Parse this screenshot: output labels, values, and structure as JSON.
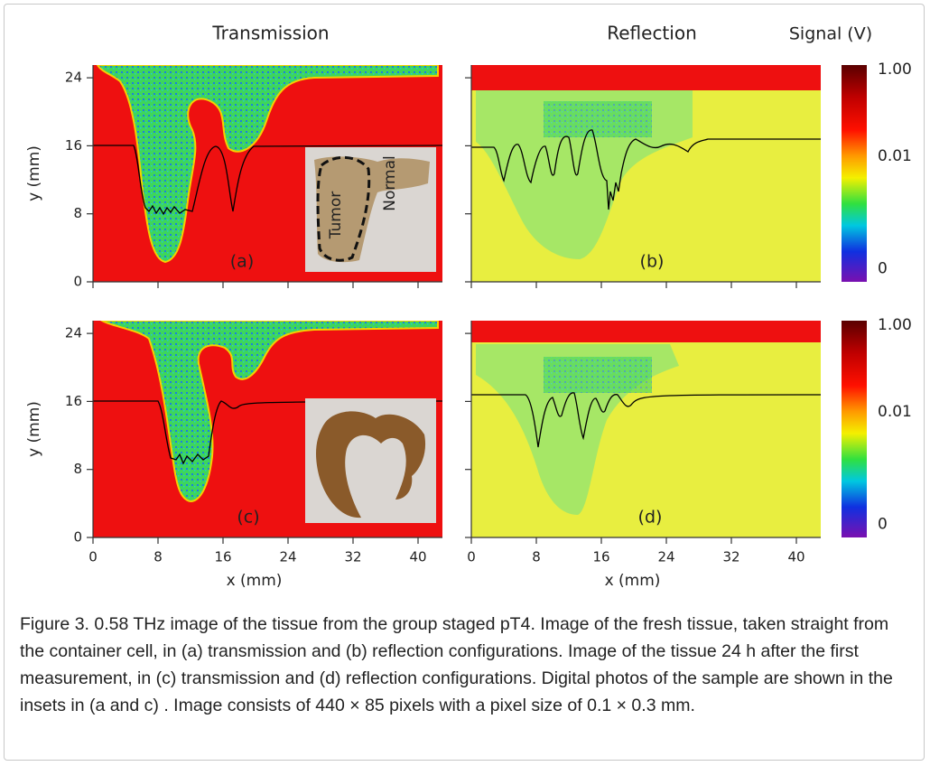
{
  "chart_data": [
    {
      "type": "heatmap",
      "mode": "transmission",
      "title": "Transmission",
      "panel_label": "(a)",
      "ylabel": "y (mm)",
      "xlim": [
        0,
        43
      ],
      "ylim": [
        0,
        25.5
      ],
      "xticks": [
        0,
        8,
        16,
        24,
        32,
        40
      ],
      "yticks": [
        0,
        8,
        16,
        24
      ],
      "show_xtick_labels": false,
      "show_ytick_labels": true,
      "inset_labels": [
        "Tumor",
        "Normal"
      ]
    },
    {
      "type": "heatmap",
      "mode": "reflection",
      "title": "Reflection",
      "panel_label": "(b)",
      "xlim": [
        0,
        43
      ],
      "ylim": [
        0,
        25.5
      ],
      "xticks": [
        0,
        8,
        16,
        24,
        32,
        40
      ],
      "yticks": [
        0,
        8,
        16,
        24
      ],
      "show_xtick_labels": false,
      "show_ytick_labels": false,
      "colorbar": {
        "title": "Signal (V)",
        "ticks": [
          {
            "value": 1,
            "label": "1.00"
          },
          0.01,
          0
        ]
      }
    },
    {
      "type": "heatmap",
      "mode": "transmission",
      "panel_label": "(c)",
      "ylabel": "y (mm)",
      "xlabel": "x (mm)",
      "xlim": [
        0,
        43
      ],
      "ylim": [
        0,
        25.5
      ],
      "xticks": [
        0,
        8,
        16,
        24,
        32,
        40
      ],
      "yticks": [
        0,
        8,
        16,
        24
      ],
      "show_xtick_labels": true,
      "show_ytick_labels": true
    },
    {
      "type": "heatmap",
      "mode": "reflection",
      "panel_label": "(d)",
      "xlabel": "x (mm)",
      "xlim": [
        0,
        43
      ],
      "ylim": [
        0,
        25.5
      ],
      "xticks": [
        0,
        8,
        16,
        24,
        32,
        40
      ],
      "yticks": [
        0,
        8,
        16,
        24
      ],
      "show_xtick_labels": true,
      "show_ytick_labels": false,
      "colorbar": {
        "ticks": [
          {
            "value": 1,
            "label": "1.00"
          },
          0.01,
          0
        ]
      }
    }
  ],
  "caption": "Figure 3. 0.58 THz image of the tissue from the group staged pT4. Image of the fresh tissue, taken straight from the container cell, in (a) transmission and (b) reflection configurations. Image of the tissue 24 h after the first measurement, in (c) transmission and (d) reflection configurations. Digital photos of the sample are shown in the insets in (a and c) . Image consists of 440 × 85 pixels with a pixel size of 0.1 × 0.3 mm."
}
